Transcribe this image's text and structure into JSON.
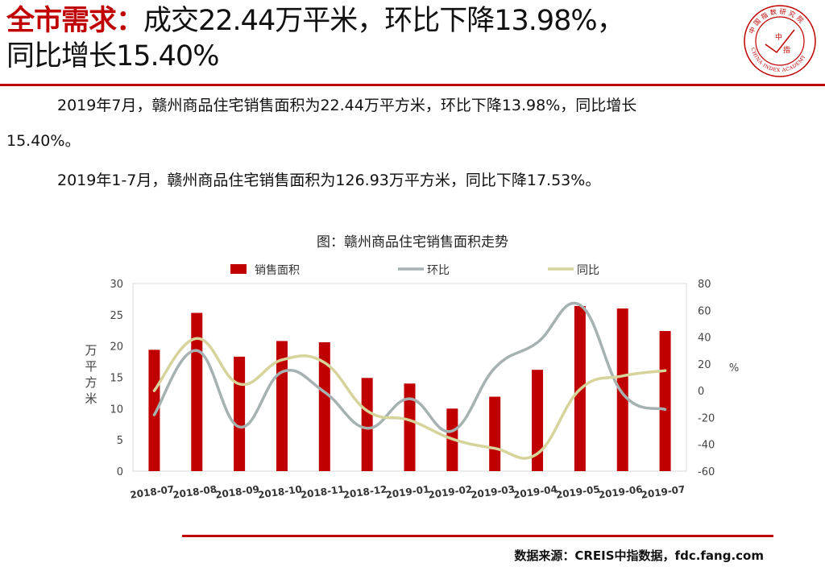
{
  "heading": {
    "lead": "全市需求：",
    "line1": "成交22.44万平米，环比下降13.98%，",
    "line2": "同比增长15.40%"
  },
  "logo": {
    "ring_text": "中国指数研究院",
    "english": "CHINA INDEX ACADEMY",
    "center_top": "中",
    "center_bottom": "指"
  },
  "paragraphs": {
    "p1a": "2019年7月，赣州商品住宅销售面积为22.44万平方米，环比下降13.98%，同比增长",
    "p1b": "15.40%。",
    "p2": "2019年1-7月，赣州商品住宅销售面积为126.93万平方米，同比下降17.53%。"
  },
  "source": "数据来源：CREIS中指数据，fdc.fang.com",
  "chart_data": {
    "type": "bar",
    "title": "图：赣州商品住宅销售面积走势",
    "categories": [
      "2018-07",
      "2018-08",
      "2018-09",
      "2018-10",
      "2018-11",
      "2018-12",
      "2019-01",
      "2019-02",
      "2019-03",
      "2019-04",
      "2019-05",
      "2019-06",
      "2019-07"
    ],
    "ylabel": "万平方米",
    "y2label": "%",
    "ylim": [
      0,
      30
    ],
    "y2lim": [
      -60,
      80
    ],
    "yticks": [
      0,
      5,
      10,
      15,
      20,
      25,
      30
    ],
    "y2ticks": [
      -60,
      -40,
      -20,
      0,
      20,
      40,
      60,
      80
    ],
    "legend_position": "top",
    "series": [
      {
        "name": "销售面积",
        "type": "bar",
        "axis": "left",
        "color": "#c00000",
        "values": [
          19.4,
          25.3,
          18.3,
          20.8,
          20.6,
          14.9,
          14.0,
          10.0,
          11.9,
          16.2,
          26.4,
          26.0,
          22.4
        ]
      },
      {
        "name": "环比",
        "type": "line",
        "axis": "right",
        "color": "#a6b1b1",
        "values": [
          -18,
          30,
          -27,
          14,
          -1,
          -28,
          -6,
          -30,
          17,
          36,
          64,
          -2,
          -14
        ]
      },
      {
        "name": "同比",
        "type": "line",
        "axis": "right",
        "color": "#d6d39b",
        "values": [
          0,
          39,
          5,
          23,
          21,
          -15,
          -22,
          -36,
          -43,
          -47,
          1,
          11,
          15
        ]
      }
    ]
  }
}
